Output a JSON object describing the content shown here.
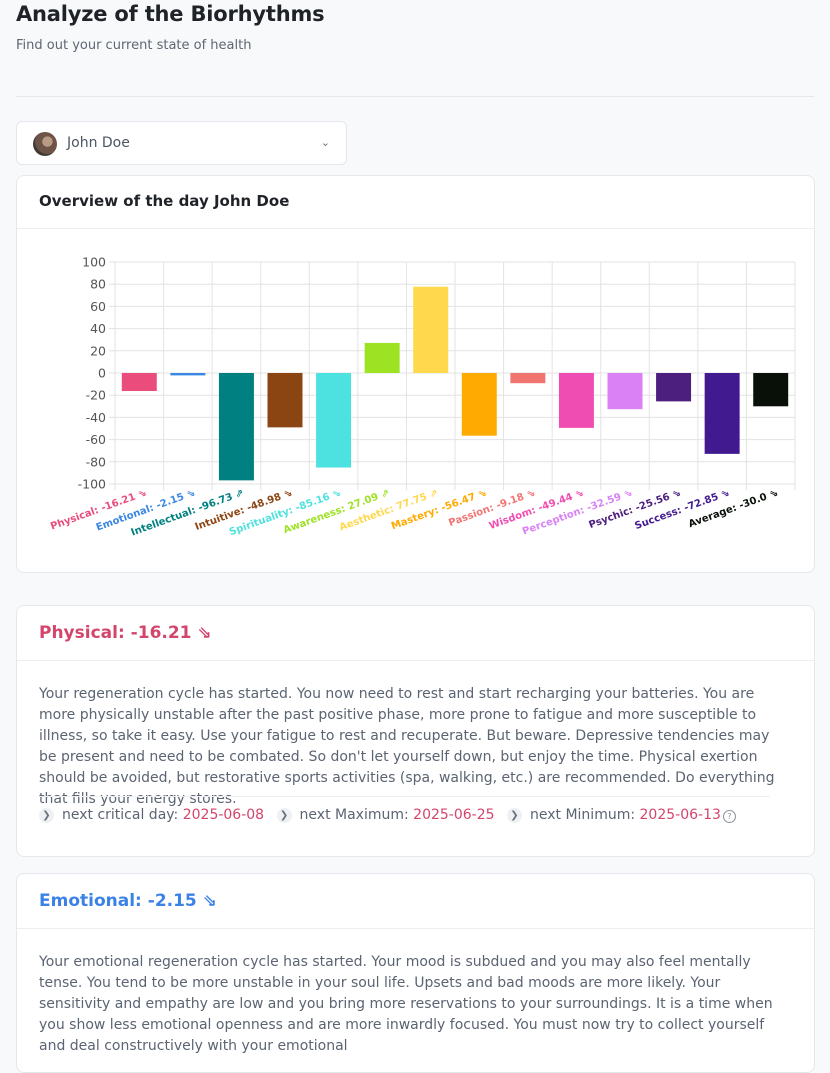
{
  "page": {
    "title": "Analyze of the Biorhythms",
    "subtitle": "Find out your current state of health"
  },
  "person_select": {
    "value": "John Doe"
  },
  "overview": {
    "title": "Overview of the day John Doe"
  },
  "chart_data": {
    "type": "bar",
    "categories": [
      "Physical",
      "Emotional",
      "Intellectual",
      "Intuitive",
      "Spirituality",
      "Awareness",
      "Aesthetic",
      "Mastery",
      "Passion",
      "Wisdom",
      "Perception",
      "Psychic",
      "Success",
      "Average"
    ],
    "values": [
      -16.21,
      -2.15,
      -96.73,
      -48.98,
      -85.16,
      27.09,
      77.75,
      -56.47,
      -9.18,
      -49.44,
      -32.59,
      -25.56,
      -72.85,
      -30.0
    ],
    "tick_labels": [
      "Physical: -16.21 ⇘",
      "Emotional: -2.15 ⇘",
      "Intellectual: -96.73 ⇗",
      "Intuitive: -48.98 ⇘",
      "Spirituality: -85.16 ⇘",
      "Awareness: 27.09 ⇗",
      "Aesthetic: 77.75 ⇗",
      "Mastery: -56.47 ⇘",
      "Passion: -9.18 ⇘",
      "Wisdom: -49.44 ⇘",
      "Perception: -32.59 ⇘",
      "Psychic: -25.56 ⇘",
      "Success: -72.85 ⇘",
      "Average: -30.0 ⇘"
    ],
    "colors": [
      "#ea4c7c",
      "#3b86e3",
      "#008080",
      "#8b4513",
      "#4de2df",
      "#9ee224",
      "#ffd84d",
      "#ffaa00",
      "#f07571",
      "#f04db2",
      "#da81f5",
      "#4c1e7e",
      "#421a8f",
      "#081008"
    ],
    "ylim": [
      -100,
      100
    ],
    "yticks": [
      100,
      80,
      60,
      40,
      20,
      0,
      -20,
      -40,
      -60,
      -80,
      -100
    ],
    "grid": true,
    "legend": "none"
  },
  "sections": [
    {
      "title": "Physical: -16.21 ⇘",
      "color": "#d4456c",
      "body": "Your regeneration cycle has started. You now need to rest and start recharging your batteries. You are more physically unstable after the past positive phase, more prone to fatigue and more susceptible to illness, so take it easy. Use your fatigue to rest and recuperate. But beware. Depressive tendencies may be present and need to be combated. So don't let yourself down, but enjoy the time. Physical exertion should be avoided, but restorative sports activities (spa, walking, etc.) are recommended. Do everything that fills your energy stores.",
      "critical": {
        "next_critical_label": "next critical day:",
        "next_critical_date": "2025-06-08",
        "next_max_label": "next Maximum:",
        "next_max_date": "2025-06-25",
        "next_min_label": "next Minimum:",
        "next_min_date": "2025-06-13"
      }
    },
    {
      "title": "Emotional: -2.15 ⇘",
      "color": "#3b82e6",
      "body": "Your emotional regeneration cycle has started. Your mood is subdued and you may also feel mentally tense. You tend to be more unstable in your soul life. Upsets and bad moods are more likely. Your sensitivity and empathy are low and you bring more reservations to your surroundings. It is a time when you show less emotional openness and are more inwardly focused. You must now try to collect yourself and deal constructively with your emotional"
    }
  ]
}
